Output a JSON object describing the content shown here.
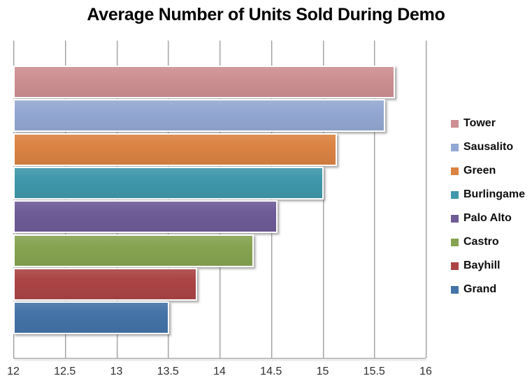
{
  "chart_data": {
    "type": "bar",
    "orientation": "horizontal",
    "title": "Average Number of Units Sold During Demo",
    "categories": [
      "Tower",
      "Sausalito",
      "Green",
      "Burlingame",
      "Palo Alto",
      "Castro",
      "Bayhill",
      "Grand"
    ],
    "values": [
      15.7,
      15.61,
      15.14,
      15.01,
      14.56,
      14.33,
      13.78,
      13.51
    ],
    "colors": [
      "#cd8f92",
      "#93a8d2",
      "#db8343",
      "#3f98ab",
      "#6e5b97",
      "#86a351",
      "#ab4445",
      "#4473a8"
    ],
    "xlabel": "",
    "ylabel": "",
    "xlim": [
      12,
      16
    ],
    "x_ticks": [
      12,
      12.5,
      13,
      13.5,
      14,
      14.5,
      15,
      15.5,
      16
    ],
    "x_tick_labels": [
      "12",
      "12.5",
      "13",
      "13.5",
      "14",
      "14.5",
      "15",
      "15.5",
      "16"
    ],
    "grid": true,
    "legend_position": "right",
    "legend_entries": [
      "Tower",
      "Sausalito",
      "Green",
      "Burlingame",
      "Palo Alto",
      "Castro",
      "Bayhill",
      "Grand"
    ]
  }
}
